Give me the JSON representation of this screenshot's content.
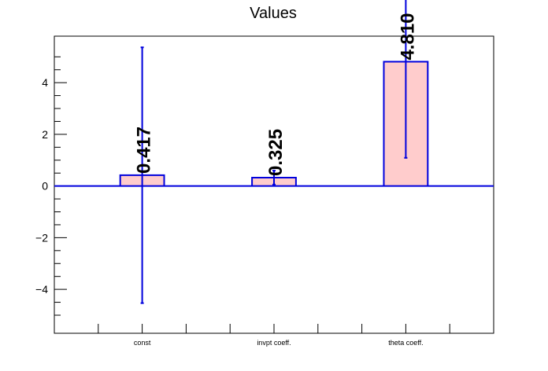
{
  "chart_data": {
    "type": "bar",
    "title": "Values",
    "xlabel": "",
    "ylabel": "",
    "categories": [
      "const",
      "invpt coeff.",
      "theta coeff."
    ],
    "values": [
      0.417,
      0.325,
      4.81
    ],
    "value_labels": [
      "0.417",
      "0.325",
      "4.810"
    ],
    "errors": [
      4.95,
      0.27,
      3.72
    ],
    "ylim": [
      -5.7,
      5.8
    ],
    "yticks": [
      -4,
      -2,
      0,
      2,
      4
    ],
    "ytick_labels": [
      "−4",
      "−2",
      "0",
      "2",
      "4"
    ],
    "grid": false,
    "colors": {
      "bar_fill": "#ffcccc",
      "bar_edge": "#0000dd",
      "error": "#0000dd",
      "zero_line": "#0000dd"
    }
  }
}
